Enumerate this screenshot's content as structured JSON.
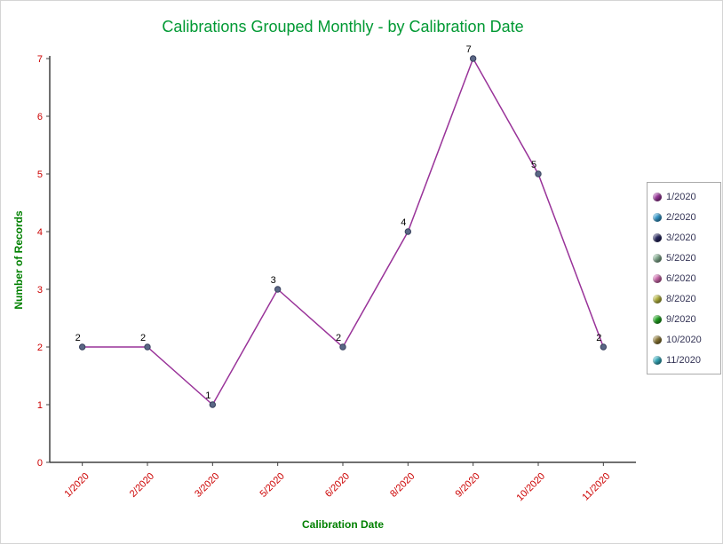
{
  "chart_data": {
    "type": "line",
    "title": "Calibrations Grouped Monthly - by Calibration Date",
    "xlabel": "Calibration Date",
    "ylabel": "Number of Records",
    "categories": [
      "1/2020",
      "2/2020",
      "3/2020",
      "5/2020",
      "6/2020",
      "8/2020",
      "9/2020",
      "10/2020",
      "11/2020"
    ],
    "values": [
      2,
      2,
      1,
      3,
      2,
      4,
      7,
      5,
      2
    ],
    "ylim": [
      0,
      7
    ],
    "ytick_step": 1,
    "grid": false,
    "legend_position": "right",
    "legend": [
      {
        "label": "1/2020",
        "color": "#993399"
      },
      {
        "label": "2/2020",
        "color": "#3399CC"
      },
      {
        "label": "3/2020",
        "color": "#26265E"
      },
      {
        "label": "5/2020",
        "color": "#7FA98C"
      },
      {
        "label": "6/2020",
        "color": "#CC66AA"
      },
      {
        "label": "8/2020",
        "color": "#B3B33D"
      },
      {
        "label": "9/2020",
        "color": "#1FA31F"
      },
      {
        "label": "10/2020",
        "color": "#8A7633"
      },
      {
        "label": "11/2020",
        "color": "#33AABB"
      }
    ],
    "colors": {
      "title": "#009933",
      "axis_label": "#008000",
      "tick": "#CC0000",
      "line": "#993399",
      "marker": "#5A6785",
      "marker_edge": "#39415E",
      "data_label": "#000000",
      "axis": "#404040",
      "legend_text": "#333355",
      "legend_border": "#ABABAB"
    }
  }
}
